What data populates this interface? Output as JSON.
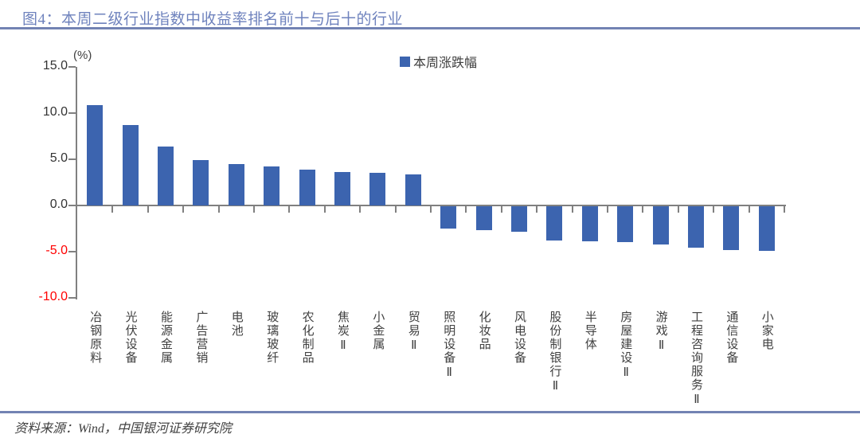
{
  "header": {
    "title": "图4：本周二级行业指数中收益率排名前十与后十的行业"
  },
  "chart": {
    "unit_label": "(%)",
    "legend_label": "本周涨跌幅"
  },
  "chart_data": {
    "type": "bar",
    "title": "本周二级行业指数中收益率排名前十与后十的行业",
    "legend": [
      "本周涨跌幅"
    ],
    "legend_position": "top-center",
    "unit": "%",
    "categories": [
      "冶钢原料",
      "光伏设备",
      "能源金属",
      "广告营销",
      "电池",
      "玻璃玻纤",
      "农化制品",
      "焦炭Ⅱ",
      "小金属",
      "贸易Ⅱ",
      "照明设备Ⅱ",
      "化妆品",
      "风电设备",
      "股份制银行Ⅱ",
      "半导体",
      "房屋建设Ⅱ",
      "游戏Ⅱ",
      "工程咨询服务Ⅱ",
      "通信设备",
      "小家电"
    ],
    "values": [
      10.9,
      8.7,
      6.4,
      4.9,
      4.5,
      4.2,
      3.9,
      3.6,
      3.5,
      3.4,
      -2.4,
      -2.6,
      -2.8,
      -3.7,
      -3.8,
      -3.9,
      -4.1,
      -4.5,
      -4.7,
      -4.8
    ],
    "ylim": [
      -10.0,
      15.0
    ],
    "yticks": [
      15.0,
      10.0,
      5.0,
      0.0,
      -5.0,
      -10.0
    ],
    "grid": false,
    "xlabel": "",
    "ylabel": "(%)",
    "colors": {
      "bar": "#3c64af",
      "axis": "#808080",
      "positive_tick_text": "#333333",
      "negative_tick_text": "#ff0000",
      "title_text": "#6e82bd",
      "rule_line": "#7383b3",
      "category_text": "#404040"
    }
  },
  "footer": {
    "source": "资料来源：Wind，中国银河证券研究院"
  }
}
